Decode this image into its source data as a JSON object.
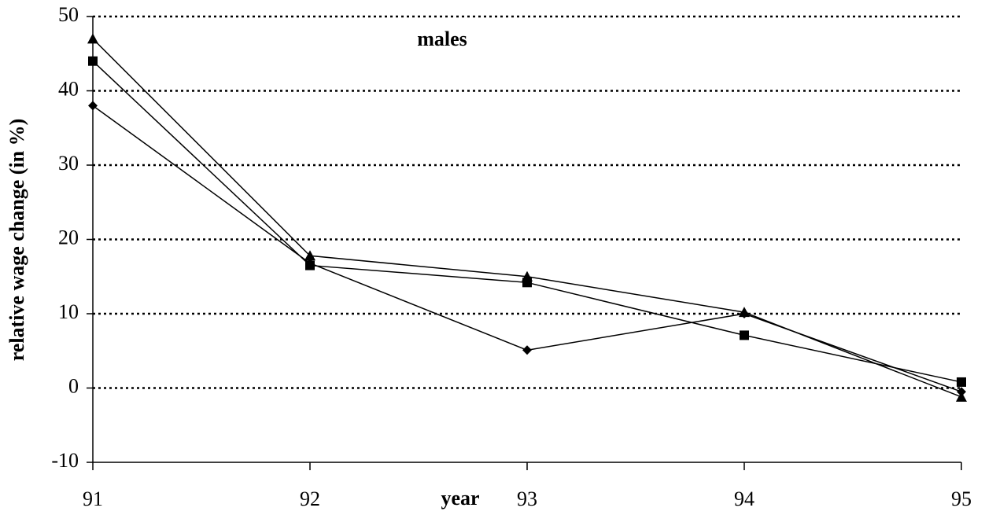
{
  "chart_data": {
    "type": "line",
    "title": "males",
    "x_label": "year",
    "y_label": "relative wage change (in %)",
    "x": [
      91,
      92,
      93,
      94,
      95
    ],
    "xlim": [
      91,
      95
    ],
    "xticks": [
      91,
      92,
      93,
      94,
      95
    ],
    "ylim": [
      -10,
      50
    ],
    "yticks": [
      -10,
      0,
      10,
      20,
      30,
      40,
      50
    ],
    "grid": true,
    "series": [
      {
        "marker": "diamond",
        "color": "#000000",
        "values": [
          38,
          16.8,
          5.1,
          10,
          -0.5
        ]
      },
      {
        "marker": "square",
        "color": "#000000",
        "values": [
          44,
          16.5,
          14.2,
          7.1,
          0.8
        ]
      },
      {
        "marker": "triangle",
        "color": "#000000",
        "values": [
          47,
          17.8,
          15,
          10.2,
          -1.2
        ]
      }
    ]
  }
}
